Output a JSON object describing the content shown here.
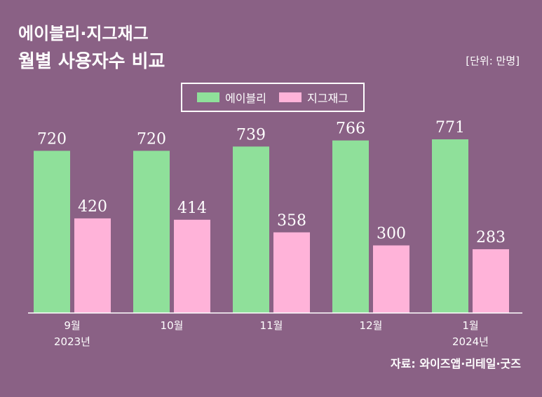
{
  "header": {
    "title_line1": "에이블리·지그재그",
    "title_line2": "월별 사용자수 비교",
    "unit": "[단위: 만명]"
  },
  "footer": {
    "source": "자료: 와이즈앱·리테일·굿즈"
  },
  "colors": {
    "background": "#8a6185",
    "series_ably": "#8fe09a",
    "series_zigzag": "#ffb3d9",
    "label": "#ffffff"
  },
  "chart_data": {
    "type": "bar",
    "categories": [
      "9월",
      "10월",
      "11월",
      "12월",
      "1월"
    ],
    "category_sublabels": [
      "2023년",
      "",
      "",
      "",
      "2024년"
    ],
    "series": [
      {
        "name": "에이블리",
        "values": [
          720,
          720,
          739,
          766,
          771
        ]
      },
      {
        "name": "지그재그",
        "values": [
          420,
          414,
          358,
          300,
          283
        ]
      }
    ],
    "ylim": [
      0,
      800
    ],
    "grid": false,
    "legend_position": "top-center",
    "xlabel": "",
    "ylabel": ""
  }
}
